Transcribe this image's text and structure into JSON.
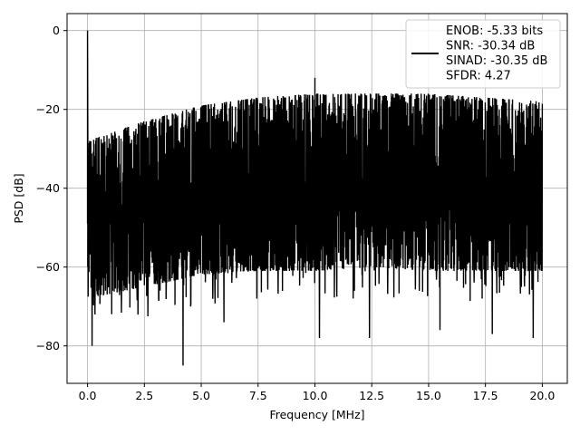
{
  "chart_data": {
    "type": "line",
    "title": "",
    "xlabel": "Frequency [MHz]",
    "ylabel": "PSD [dB]",
    "xlim": [
      -0.9,
      21.1
    ],
    "ylim": [
      -89.5,
      4.3
    ],
    "xticks": [
      0.0,
      2.5,
      5.0,
      7.5,
      10.0,
      12.5,
      15.0,
      17.5,
      20.0
    ],
    "xtick_labels": [
      "0.0",
      "2.5",
      "5.0",
      "7.5",
      "10.0",
      "12.5",
      "15.0",
      "17.5",
      "20.0"
    ],
    "yticks": [
      0,
      -20,
      -40,
      -60,
      -80
    ],
    "ytick_labels": [
      "0",
      "−20",
      "−40",
      "−60",
      "−80"
    ],
    "grid": true,
    "legend_position": "top-right",
    "series": [
      {
        "color": "#000000",
        "x_range": [
          0.0,
          20.0
        ],
        "peak": {
          "x": 0.0,
          "y": 0.0
        },
        "spur": {
          "x": 10.0,
          "y": -12.0
        },
        "upper_envelope": [
          {
            "x": 0.0,
            "y": -28
          },
          {
            "x": 2.5,
            "y": -23
          },
          {
            "x": 5.0,
            "y": -19
          },
          {
            "x": 7.5,
            "y": -17
          },
          {
            "x": 10.0,
            "y": -16
          },
          {
            "x": 12.5,
            "y": -16
          },
          {
            "x": 15.0,
            "y": -16
          },
          {
            "x": 17.5,
            "y": -17
          },
          {
            "x": 20.0,
            "y": -18
          }
        ],
        "lower_envelope": [
          {
            "x": 0.0,
            "y": -68
          },
          {
            "x": 2.5,
            "y": -65
          },
          {
            "x": 5.0,
            "y": -62
          },
          {
            "x": 7.5,
            "y": -61
          },
          {
            "x": 10.0,
            "y": -61
          },
          {
            "x": 12.5,
            "y": -60
          },
          {
            "x": 15.0,
            "y": -61
          },
          {
            "x": 17.5,
            "y": -61
          },
          {
            "x": 20.0,
            "y": -61
          }
        ],
        "deep_dips": [
          {
            "x": 0.2,
            "y": -80
          },
          {
            "x": 4.2,
            "y": -85
          },
          {
            "x": 6.0,
            "y": -74
          },
          {
            "x": 10.2,
            "y": -78
          },
          {
            "x": 12.4,
            "y": -78
          },
          {
            "x": 15.5,
            "y": -76
          },
          {
            "x": 17.8,
            "y": -77
          },
          {
            "x": 19.6,
            "y": -78
          }
        ]
      }
    ],
    "legend_lines": [
      "ENOB: -5.33 bits",
      "SNR: -30.34 dB",
      "SINAD: -30.35 dB",
      "SFDR: 4.27"
    ]
  }
}
